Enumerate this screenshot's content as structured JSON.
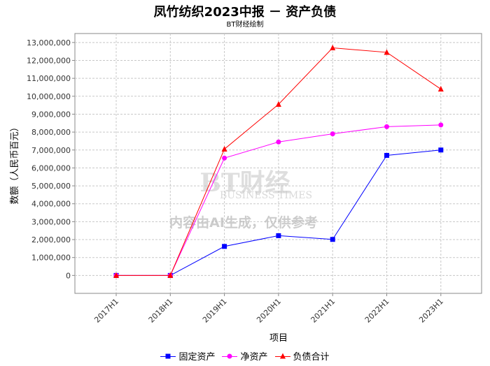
{
  "chart_data": {
    "type": "line",
    "title": "凤竹纺织2023中报 － 资产负债",
    "subtitle": "BT财经绘制",
    "xlabel": "项目",
    "ylabel": "数额（人民币百元）",
    "categories": [
      "2017H1",
      "2018H1",
      "2019H1",
      "2020H1",
      "2021H1",
      "2022H1",
      "2023H1"
    ],
    "ylim": [
      -1000000,
      13500000
    ],
    "yticks": [
      0,
      1000000,
      2000000,
      3000000,
      4000000,
      5000000,
      6000000,
      7000000,
      8000000,
      9000000,
      10000000,
      11000000,
      12000000,
      13000000
    ],
    "ytick_labels": [
      "0",
      "1,000,000",
      "2,000,000",
      "3,000,000",
      "4,000,000",
      "5,000,000",
      "6,000,000",
      "7,000,000",
      "8,000,000",
      "9,000,000",
      "10,000,000",
      "11,000,000",
      "12,000,000",
      "13,000,000"
    ],
    "grid": true,
    "legend_position": "bottom",
    "series": [
      {
        "name": "固定资产",
        "color": "#0000ff",
        "marker": "square",
        "values": [
          0,
          0,
          1620000,
          2220000,
          2010000,
          6700000,
          7000000
        ]
      },
      {
        "name": "净资产",
        "color": "#ff00ff",
        "marker": "circle",
        "values": [
          0,
          0,
          6550000,
          7450000,
          7900000,
          8300000,
          8400000
        ]
      },
      {
        "name": "负债合计",
        "color": "#ff0000",
        "marker": "triangle",
        "values": [
          0,
          0,
          7050000,
          9550000,
          12700000,
          12450000,
          10400000
        ]
      }
    ],
    "watermark": {
      "line1": "BT财经",
      "line2": "BUSINESS TIMES",
      "line3": "内容由AI生成，仅供参考"
    }
  }
}
